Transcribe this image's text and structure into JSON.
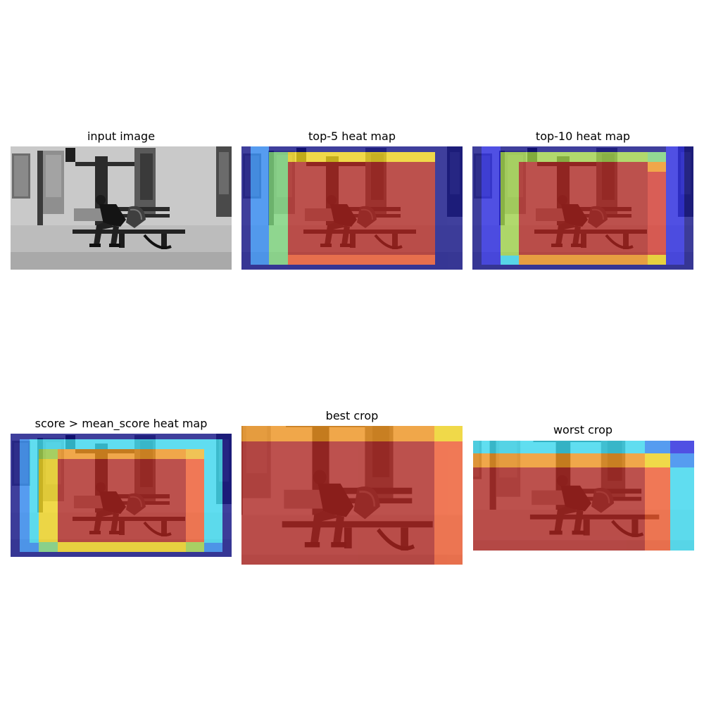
{
  "panels": [
    {
      "title": "input image"
    },
    {
      "title": "top-5 heat map"
    },
    {
      "title": "top-10 heat map"
    },
    {
      "title": "score > mean_score heat map"
    },
    {
      "title": "best crop"
    },
    {
      "title": "worst crop"
    }
  ],
  "colors": {
    "deep_blue": "#0b0b8c",
    "blue": "#2222ee",
    "light_blue": "#2a8cff",
    "cyan": "#38e6ff",
    "green": "#7fe07f",
    "yellow": "#ffe019",
    "orange": "#ff9a1a",
    "orange_red": "#ff5a2a",
    "red": "#b8231e"
  }
}
